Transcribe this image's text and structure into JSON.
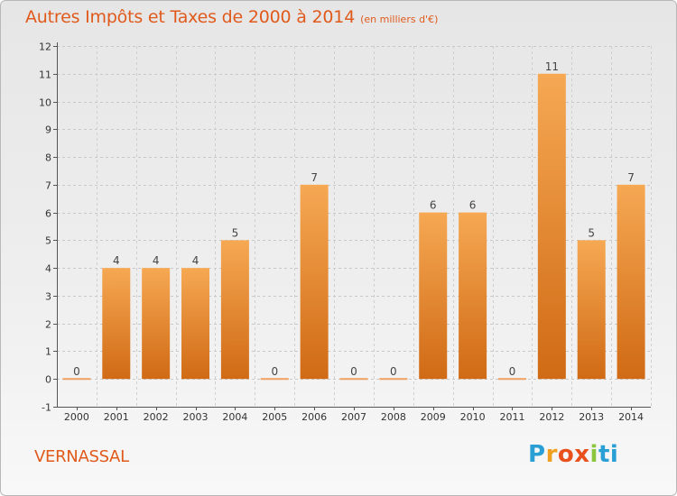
{
  "title": {
    "main": "Autres Impôts et Taxes de 2000 à 2014",
    "unit": "(en milliers d'€)"
  },
  "commune": "VERNASSAL",
  "brand": {
    "letters": [
      "P",
      "r",
      "o",
      "x",
      "i",
      "t",
      "i"
    ],
    "colors": [
      "#2a9fd6",
      "#f0a020",
      "#e8501c",
      "#e8501c",
      "#8cc63f",
      "#2a9fd6",
      "#2a9fd6"
    ]
  },
  "colors": {
    "bar_top": "#f6a853",
    "bar_bottom": "#d06a15",
    "zero_bar": "#f0a060",
    "title": "#e05a1c"
  },
  "chart_data": {
    "type": "bar",
    "categories": [
      "2000",
      "2001",
      "2002",
      "2003",
      "2004",
      "2005",
      "2006",
      "2007",
      "2008",
      "2009",
      "2010",
      "2011",
      "2012",
      "2013",
      "2014"
    ],
    "values": [
      0,
      4,
      4,
      4,
      5,
      0,
      7,
      0,
      0,
      6,
      6,
      0,
      11,
      5,
      7
    ],
    "title": "Autres Impôts et Taxes de 2000 à 2014",
    "subtitle": "(en milliers d'€)",
    "xlabel": "",
    "ylabel": "",
    "ylim": [
      -1,
      12
    ],
    "yticks": [
      "-1",
      "0",
      "1",
      "2",
      "3",
      "4",
      "5",
      "6",
      "7",
      "8",
      "9",
      "10",
      "11",
      "12"
    ],
    "grid": "horizontal-dashed",
    "legend": "none"
  }
}
